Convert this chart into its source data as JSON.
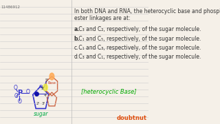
{
  "background_color": "#f5f0e8",
  "line_color": "#cccccc",
  "id_text": "11486912",
  "title_line1": "In both DNA and RNA, the heterocyclic base and phosphate",
  "title_line2": "ester linkages are at:",
  "options": [
    {
      "label": "a.",
      "bold": true,
      "text": " C₃ and C₂, respectively, of the sugar molecule."
    },
    {
      "label": "b.",
      "bold": true,
      "text": " C₁ and C₅, respectively, of the sugar molecule."
    },
    {
      "label": "c.",
      "bold": false,
      "text": " C₁ and C₃, respectively, of the sugar molecule."
    },
    {
      "label": "d.",
      "bold": false,
      "text": " C₃ and C₁, respectively, of the sugar molecule."
    }
  ],
  "doubtnut_color": "#e05010",
  "diagram": {
    "phosphate_color": "#3333cc",
    "sugar_color": "#cc6644",
    "base_color": "#cc9944",
    "sugar_ring_color": "#3333cc",
    "label_sugar": "sugar",
    "label_base": "heterocyclic Base"
  }
}
